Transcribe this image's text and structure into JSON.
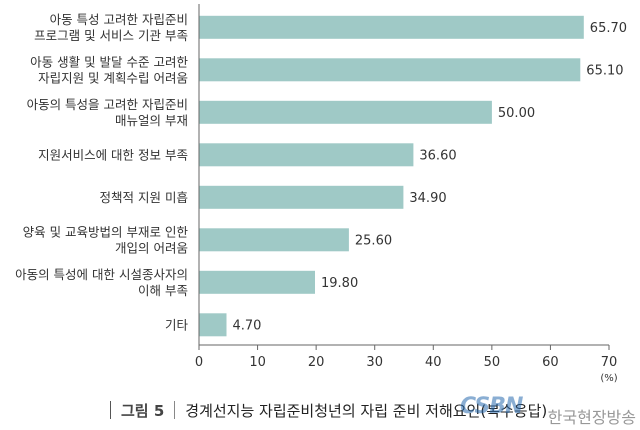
{
  "figure": {
    "label": "그림 5",
    "title": "경계선지능 자립준비청년의 자립 준비 저해요인(복수응답)"
  },
  "watermark": {
    "logo": "CSBN",
    "text": "한국현장방송"
  },
  "chart_data": {
    "type": "bar",
    "orientation": "horizontal",
    "categories": [
      [
        "아동 특성 고려한 자립준비",
        "프로그램 및 서비스 기관 부족"
      ],
      [
        "아동 생활 및 발달 수준 고려한",
        "자립지원 및 계획수립 어려움"
      ],
      [
        "아동의 특성을 고려한 자립준비",
        "매뉴얼의 부재"
      ],
      [
        "지원서비스에 대한 정보 부족"
      ],
      [
        "정책적 지원 미흡"
      ],
      [
        "양육 및 교육방법의 부재로 인한",
        "개입의 어려움"
      ],
      [
        "아동의 특성에 대한 시설종사자의",
        "이해 부족"
      ],
      [
        "기타"
      ]
    ],
    "values": [
      65.7,
      65.1,
      50.0,
      36.6,
      34.9,
      25.6,
      19.8,
      4.7
    ],
    "value_labels": [
      "65.70",
      "65.10",
      "50.00",
      "36.60",
      "34.90",
      "25.60",
      "19.80",
      "4.70"
    ],
    "xlim": [
      0,
      70
    ],
    "xticks": [
      0,
      10,
      20,
      30,
      40,
      50,
      60,
      70
    ],
    "xtick_labels": [
      "0",
      "10",
      "20",
      "30",
      "40",
      "50",
      "60",
      "70"
    ],
    "x_unit": "(%)",
    "bar_color": "#9fc9c6",
    "axis_color": "#666666",
    "grid": false,
    "legend": false
  }
}
